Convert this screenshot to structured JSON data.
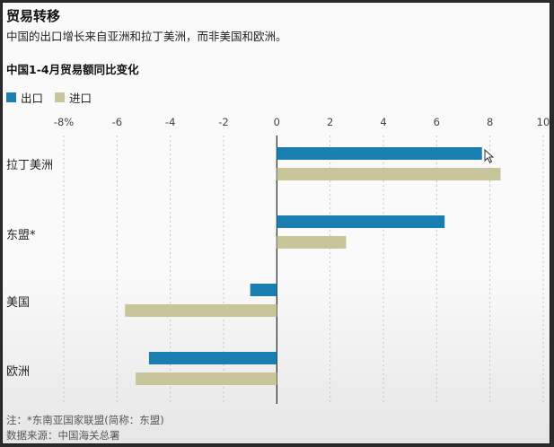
{
  "title": "贸易转移",
  "subtitle": "中国的出口增长来自亚洲和拉丁美洲，而非美国和欧洲。",
  "chart_data": {
    "type": "bar",
    "orientation": "horizontal",
    "title": "中国1-4月贸易额同比变化",
    "categories": [
      "拉丁美洲",
      "东盟*",
      "美国",
      "欧洲"
    ],
    "series": [
      {
        "name": "出口",
        "color": "#1a7eb0",
        "values": [
          7.7,
          6.3,
          -1.0,
          -4.8
        ]
      },
      {
        "name": "进口",
        "color": "#c8c59a",
        "values": [
          8.4,
          2.6,
          -5.7,
          -5.3
        ]
      }
    ],
    "xlim": [
      -8,
      10
    ],
    "xticks": [
      -8,
      -6,
      -4,
      -2,
      0,
      2,
      4,
      6,
      8,
      10
    ],
    "xtick_labels": [
      "-8%",
      "-6",
      "-4",
      "-2",
      "0",
      "2",
      "4",
      "6",
      "8",
      "10"
    ],
    "grid": true,
    "legend_position": "top-left"
  },
  "notes": {
    "footnote": "注：*东南亚国家联盟(简称：东盟)",
    "source": "数据来源：中国海关总署"
  }
}
